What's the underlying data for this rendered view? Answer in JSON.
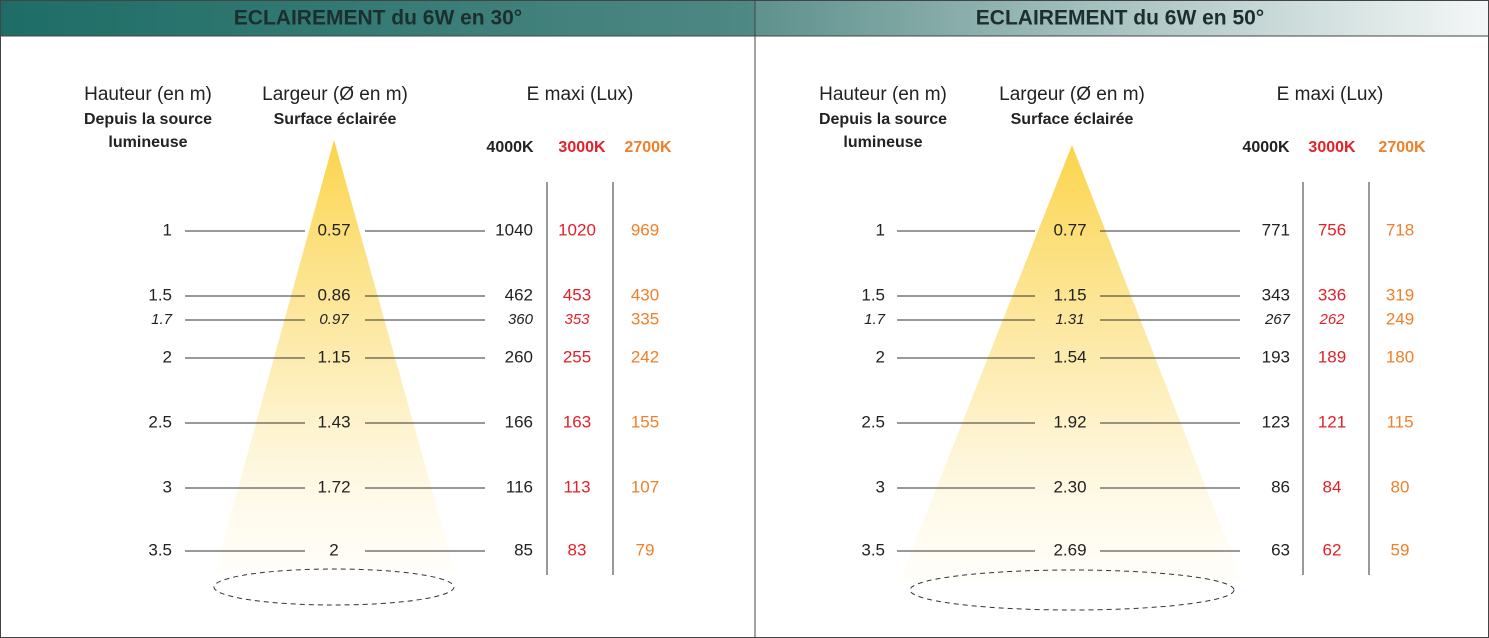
{
  "panels": [
    {
      "title": "ECLAIREMENT du 6W en 30°",
      "height_header": "Hauteur (en m)",
      "height_sub": [
        "Depuis la source",
        "lumineuse"
      ],
      "width_header": "Largeur (Ø en m)",
      "width_sub": "Surface éclairée",
      "lux_header": "E maxi (Lux)",
      "temps": [
        "4000K",
        "3000K",
        "2700K"
      ],
      "rows": [
        {
          "height": "1",
          "width": "0.57",
          "lux": [
            "1040",
            "1020",
            "969"
          ]
        },
        {
          "height": "1.5",
          "width": "0.86",
          "lux": [
            "462",
            "453",
            "430"
          ]
        },
        {
          "height": "1.7",
          "width": "0.97",
          "lux": [
            "360",
            "353",
            "335"
          ]
        },
        {
          "height": "2",
          "width": "1.15",
          "lux": [
            "260",
            "255",
            "242"
          ]
        },
        {
          "height": "2.5",
          "width": "1.43",
          "lux": [
            "166",
            "163",
            "155"
          ]
        },
        {
          "height": "3",
          "width": "1.72",
          "lux": [
            "116",
            "113",
            "107"
          ]
        },
        {
          "height": "3.5",
          "width": "2",
          "lux": [
            "85",
            "83",
            "79"
          ]
        }
      ]
    },
    {
      "title": "ECLAIREMENT du 6W en 50°",
      "height_header": "Hauteur (en m)",
      "height_sub": [
        "Depuis la source",
        "lumineuse"
      ],
      "width_header": "Largeur (Ø en m)",
      "width_sub": "Surface éclairée",
      "lux_header": "E maxi (Lux)",
      "temps": [
        "4000K",
        "3000K",
        "2700K"
      ],
      "rows": [
        {
          "height": "1",
          "width": "0.77",
          "lux": [
            "771",
            "756",
            "718"
          ]
        },
        {
          "height": "1.5",
          "width": "1.15",
          "lux": [
            "343",
            "336",
            "319"
          ]
        },
        {
          "height": "1.7",
          "width": "1.31",
          "lux": [
            "267",
            "262",
            "249"
          ]
        },
        {
          "height": "2",
          "width": "1.54",
          "lux": [
            "193",
            "189",
            "180"
          ]
        },
        {
          "height": "2.5",
          "width": "1.92",
          "lux": [
            "123",
            "121",
            "115"
          ]
        },
        {
          "height": "3",
          "width": "2.30",
          "lux": [
            "86",
            "84",
            "80"
          ]
        },
        {
          "height": "3.5",
          "width": "2.69",
          "lux": [
            "63",
            "62",
            "59"
          ]
        }
      ]
    }
  ]
}
